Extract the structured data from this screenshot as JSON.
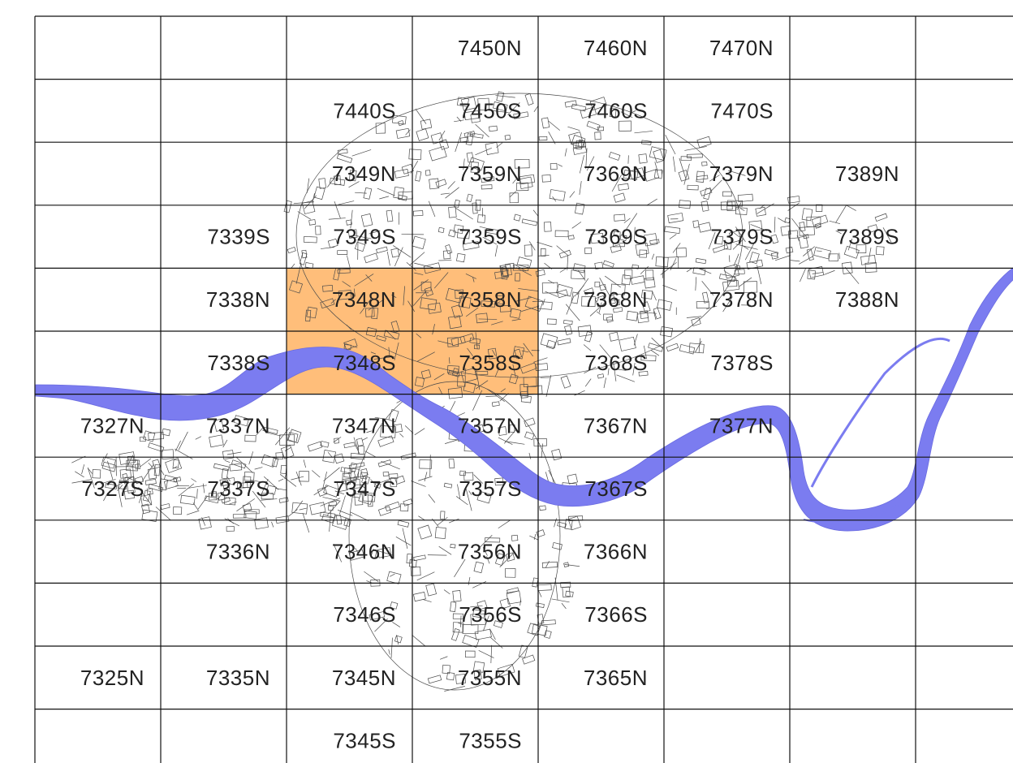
{
  "colors": {
    "river": "#7b7cf0",
    "highlight": "#ffbe7a",
    "grid": "#111111",
    "streets": "#4a4a4a"
  },
  "highlighted_sheets": [
    "7348N",
    "7358N",
    "7348S",
    "7358S"
  ],
  "sheets": [
    {
      "label": "7450N",
      "row": 0,
      "col": 3
    },
    {
      "label": "7460N",
      "row": 0,
      "col": 4
    },
    {
      "label": "7470N",
      "row": 0,
      "col": 5
    },
    {
      "label": "7440S",
      "row": 1,
      "col": 2
    },
    {
      "label": "7450S",
      "row": 1,
      "col": 3
    },
    {
      "label": "7460S",
      "row": 1,
      "col": 4
    },
    {
      "label": "7470S",
      "row": 1,
      "col": 5
    },
    {
      "label": "7349N",
      "row": 2,
      "col": 2
    },
    {
      "label": "7359N",
      "row": 2,
      "col": 3
    },
    {
      "label": "7369N",
      "row": 2,
      "col": 4
    },
    {
      "label": "7379N",
      "row": 2,
      "col": 5
    },
    {
      "label": "7389N",
      "row": 2,
      "col": 6
    },
    {
      "label": "7339S",
      "row": 3,
      "col": 1
    },
    {
      "label": "7349S",
      "row": 3,
      "col": 2
    },
    {
      "label": "7359S",
      "row": 3,
      "col": 3
    },
    {
      "label": "7369S",
      "row": 3,
      "col": 4
    },
    {
      "label": "7379S",
      "row": 3,
      "col": 5
    },
    {
      "label": "7389S",
      "row": 3,
      "col": 6
    },
    {
      "label": "7338N",
      "row": 4,
      "col": 1
    },
    {
      "label": "7348N",
      "row": 4,
      "col": 2
    },
    {
      "label": "7358N",
      "row": 4,
      "col": 3
    },
    {
      "label": "7368N",
      "row": 4,
      "col": 4
    },
    {
      "label": "7378N",
      "row": 4,
      "col": 5
    },
    {
      "label": "7388N",
      "row": 4,
      "col": 6
    },
    {
      "label": "7338S",
      "row": 5,
      "col": 1
    },
    {
      "label": "7348S",
      "row": 5,
      "col": 2
    },
    {
      "label": "7358S",
      "row": 5,
      "col": 3
    },
    {
      "label": "7368S",
      "row": 5,
      "col": 4
    },
    {
      "label": "7378S",
      "row": 5,
      "col": 5
    },
    {
      "label": "7327N",
      "row": 6,
      "col": 0
    },
    {
      "label": "7337N",
      "row": 6,
      "col": 1
    },
    {
      "label": "7347N",
      "row": 6,
      "col": 2
    },
    {
      "label": "7357N",
      "row": 6,
      "col": 3
    },
    {
      "label": "7367N",
      "row": 6,
      "col": 4
    },
    {
      "label": "7377N",
      "row": 6,
      "col": 5
    },
    {
      "label": "7327S",
      "row": 7,
      "col": 0
    },
    {
      "label": "7337S",
      "row": 7,
      "col": 1
    },
    {
      "label": "7347S",
      "row": 7,
      "col": 2
    },
    {
      "label": "7357S",
      "row": 7,
      "col": 3
    },
    {
      "label": "7367S",
      "row": 7,
      "col": 4
    },
    {
      "label": "7336N",
      "row": 8,
      "col": 1
    },
    {
      "label": "7346N",
      "row": 8,
      "col": 2
    },
    {
      "label": "7356N",
      "row": 8,
      "col": 3
    },
    {
      "label": "7366N",
      "row": 8,
      "col": 4
    },
    {
      "label": "7346S",
      "row": 9,
      "col": 2
    },
    {
      "label": "7356S",
      "row": 9,
      "col": 3
    },
    {
      "label": "7366S",
      "row": 9,
      "col": 4
    },
    {
      "label": "7325N",
      "row": 10,
      "col": 0
    },
    {
      "label": "7335N",
      "row": 10,
      "col": 1
    },
    {
      "label": "7345N",
      "row": 10,
      "col": 2
    },
    {
      "label": "7355N",
      "row": 10,
      "col": 3
    },
    {
      "label": "7365N",
      "row": 10,
      "col": 4
    },
    {
      "label": "7345S",
      "row": 11,
      "col": 2
    },
    {
      "label": "7355S",
      "row": 11,
      "col": 3
    }
  ]
}
